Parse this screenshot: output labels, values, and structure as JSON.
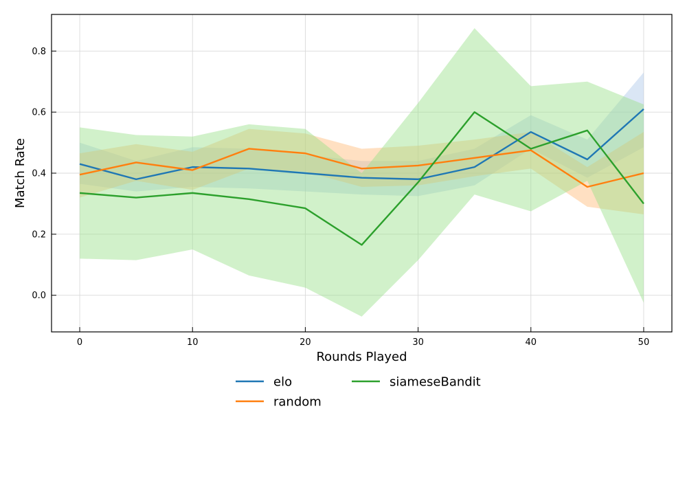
{
  "chart_data": {
    "type": "line",
    "title": "",
    "xlabel": "Rounds Played",
    "ylabel": "Match Rate",
    "x": [
      0,
      5,
      10,
      15,
      20,
      25,
      30,
      35,
      40,
      45,
      50
    ],
    "xlim": [
      -2.5,
      52.5
    ],
    "ylim": [
      -0.12,
      0.92
    ],
    "xticks": [
      0,
      10,
      20,
      30,
      40,
      50
    ],
    "yticks": [
      0.0,
      0.2,
      0.4,
      0.6,
      0.8
    ],
    "ytick_labels": [
      "0.0",
      "0.2",
      "0.4",
      "0.6",
      "0.8"
    ],
    "grid": true,
    "legend_position": "bottom-center",
    "series": [
      {
        "name": "elo",
        "color": "#1f77b4",
        "band_color": "#aec7e8",
        "values": [
          0.43,
          0.38,
          0.42,
          0.415,
          0.4,
          0.385,
          0.38,
          0.42,
          0.535,
          0.445,
          0.61
        ],
        "lower": [
          0.365,
          0.34,
          0.355,
          0.35,
          0.34,
          0.33,
          0.325,
          0.36,
          0.48,
          0.385,
          0.485
        ],
        "upper": [
          0.5,
          0.44,
          0.485,
          0.48,
          0.46,
          0.44,
          0.44,
          0.48,
          0.59,
          0.51,
          0.73
        ]
      },
      {
        "name": "random",
        "color": "#ff7f0e",
        "band_color": "#ffbb78",
        "values": [
          0.395,
          0.435,
          0.41,
          0.48,
          0.465,
          0.415,
          0.425,
          0.45,
          0.475,
          0.355,
          0.4
        ],
        "lower": [
          0.32,
          0.375,
          0.345,
          0.415,
          0.405,
          0.355,
          0.36,
          0.39,
          0.415,
          0.29,
          0.265
        ],
        "upper": [
          0.465,
          0.495,
          0.47,
          0.545,
          0.53,
          0.48,
          0.49,
          0.51,
          0.535,
          0.42,
          0.535
        ]
      },
      {
        "name": "siameseBandit",
        "color": "#2ca02c",
        "band_color": "#98df8a",
        "values": [
          0.335,
          0.32,
          0.335,
          0.315,
          0.285,
          0.165,
          0.37,
          0.6,
          0.48,
          0.54,
          0.3
        ],
        "lower": [
          0.12,
          0.115,
          0.15,
          0.065,
          0.025,
          -0.07,
          0.115,
          0.33,
          0.275,
          0.375,
          -0.025
        ],
        "upper": [
          0.55,
          0.525,
          0.52,
          0.56,
          0.545,
          0.4,
          0.63,
          0.875,
          0.685,
          0.7,
          0.625
        ]
      }
    ]
  }
}
